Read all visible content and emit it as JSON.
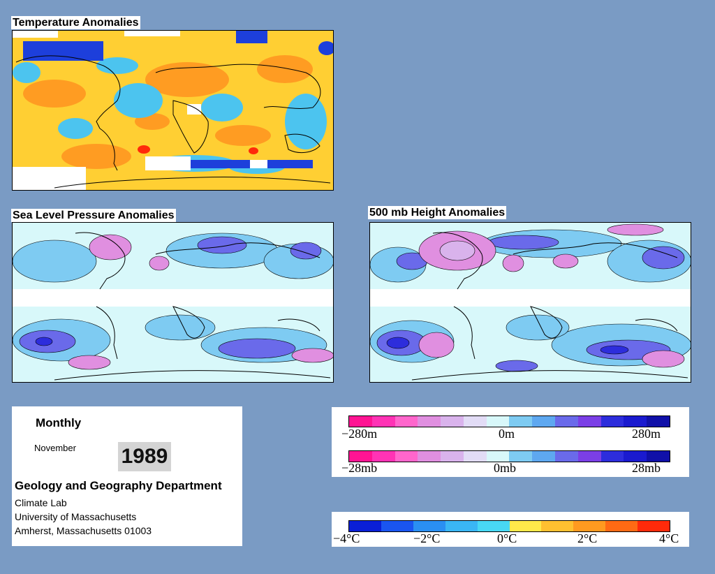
{
  "panels": {
    "temperature": {
      "title": "Temperature Anomalies"
    },
    "slp": {
      "title": "Sea Level Pressure Anomalies"
    },
    "height500": {
      "title": "500 mb Height Anomalies"
    }
  },
  "info": {
    "period": "Monthly",
    "month": "November",
    "year": "1989",
    "department": "Geology and Geography Department",
    "lines": [
      "Climate Lab",
      "University of Massachusetts",
      "Amherst, Massachusetts 01003"
    ]
  },
  "legends": {
    "height": {
      "min": "−280m",
      "mid": "0m",
      "max": "280m"
    },
    "pressure": {
      "min": "−28mb",
      "mid": "0mb",
      "max": "28mb"
    },
    "temperature": {
      "ticks": [
        "−4°C",
        "−2°C",
        "0°C",
        "2°C",
        "4°C"
      ]
    }
  },
  "colors": {
    "background": "#7a9bc4",
    "pressure_scale": [
      "#ff1493",
      "#ff33b5",
      "#ff66cc",
      "#e08fe0",
      "#d9b3ec",
      "#e2dcf6",
      "#d8f8fa",
      "#7ecbf2",
      "#5ea8f0",
      "#6a6aea",
      "#7b3fe6",
      "#2d2ddc",
      "#1a1acf",
      "#1010a8"
    ],
    "temperature_scale": [
      "#0a1fd6",
      "#1a55f0",
      "#2a8ff2",
      "#3ab6f4",
      "#48d8f4",
      "#ffe94a",
      "#ffc030",
      "#ff9a20",
      "#ff6a14",
      "#ff2a0a"
    ]
  }
}
